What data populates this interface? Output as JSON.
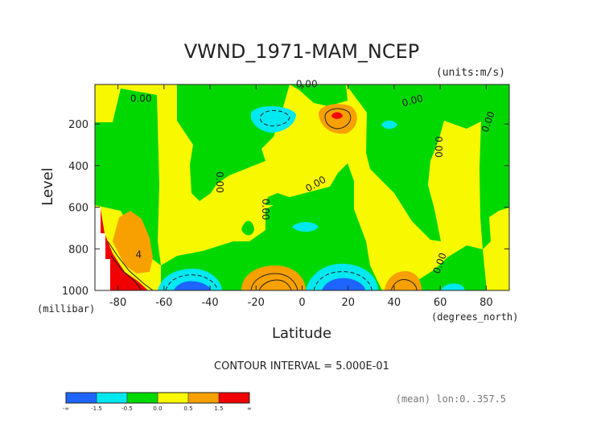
{
  "chart_data": {
    "type": "contour",
    "title": "VWND_1971-MAM_NCEP",
    "units_label": "(units:m/s)",
    "xlabel": "Latitude",
    "x_units": "(degrees_north)",
    "ylabel": "Level",
    "y_units": "(millibar)",
    "xlim": [
      -90,
      90
    ],
    "ylim": [
      1000,
      10
    ],
    "y_inverted": true,
    "x_ticks": [
      -80,
      -60,
      -40,
      -20,
      0,
      20,
      40,
      60,
      80
    ],
    "y_ticks": [
      200,
      400,
      600,
      800,
      1000
    ],
    "contour_interval_label": "CONTOUR INTERVAL = 5.000E-01",
    "footer_label": "(mean) lon:0..357.5",
    "contour_labels": [
      {
        "text": "0.00",
        "lat": -70,
        "lev": 80,
        "rotate": 0
      },
      {
        "text": "0.00",
        "lat": 2,
        "lev": 10,
        "rotate": 0
      },
      {
        "text": "0.00",
        "lat": 48,
        "lev": 90,
        "rotate": -15
      },
      {
        "text": "0.00",
        "lat": 81,
        "lev": 190,
        "rotate": -70
      },
      {
        "text": "0.00",
        "lat": 59,
        "lev": 310,
        "rotate": 90
      },
      {
        "text": "0.00",
        "lat": -36,
        "lev": 480,
        "rotate": 90
      },
      {
        "text": "0.00",
        "lat": 6,
        "lev": 490,
        "rotate": -30
      },
      {
        "text": "0.00",
        "lat": -16,
        "lev": 610,
        "rotate": 90
      },
      {
        "text": "0.00",
        "lat": 60,
        "lev": 870,
        "rotate": -70
      },
      {
        "text": "4",
        "lat": -71,
        "lev": 830,
        "rotate": 0
      }
    ],
    "legend": {
      "colors": [
        "#1e64ff",
        "#00e8f0",
        "#00d800",
        "#f8f800",
        "#f8a000",
        "#f00000"
      ],
      "tick_labels": [
        "-∞",
        "-1.5",
        "-0.5",
        "0.0",
        "0.5",
        "1.5",
        "∞"
      ]
    }
  }
}
